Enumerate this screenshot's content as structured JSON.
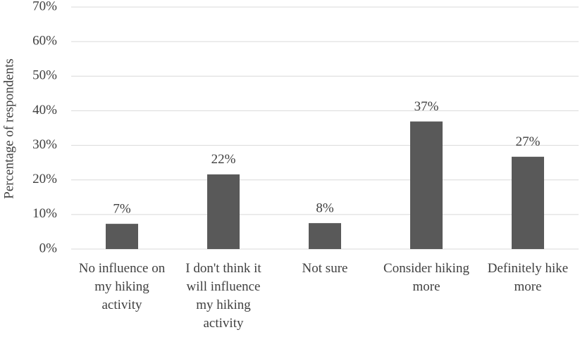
{
  "chart_data": {
    "type": "bar",
    "y_label": "Percentage of respondents",
    "categories": [
      "No influence on my hiking activity",
      "I don't think it will influence my hiking activity",
      "Not sure",
      "Consider hiking more",
      "Definitely hike more"
    ],
    "values": [
      7.3,
      21.6,
      7.5,
      36.9,
      26.7
    ],
    "value_labels": [
      "7%",
      "22%",
      "8%",
      "37%",
      "27%"
    ],
    "color": "#595959",
    "ylim": [
      0,
      70
    ],
    "yticks": [
      {
        "value": 0,
        "label": "0%"
      },
      {
        "value": 10,
        "label": "10%"
      },
      {
        "value": 20,
        "label": "20%"
      },
      {
        "value": 30,
        "label": "30%"
      },
      {
        "value": 40,
        "label": "40%"
      },
      {
        "value": 50,
        "label": "50%"
      },
      {
        "value": 60,
        "label": "60%"
      },
      {
        "value": 70,
        "label": "70%"
      }
    ],
    "grid": true
  }
}
